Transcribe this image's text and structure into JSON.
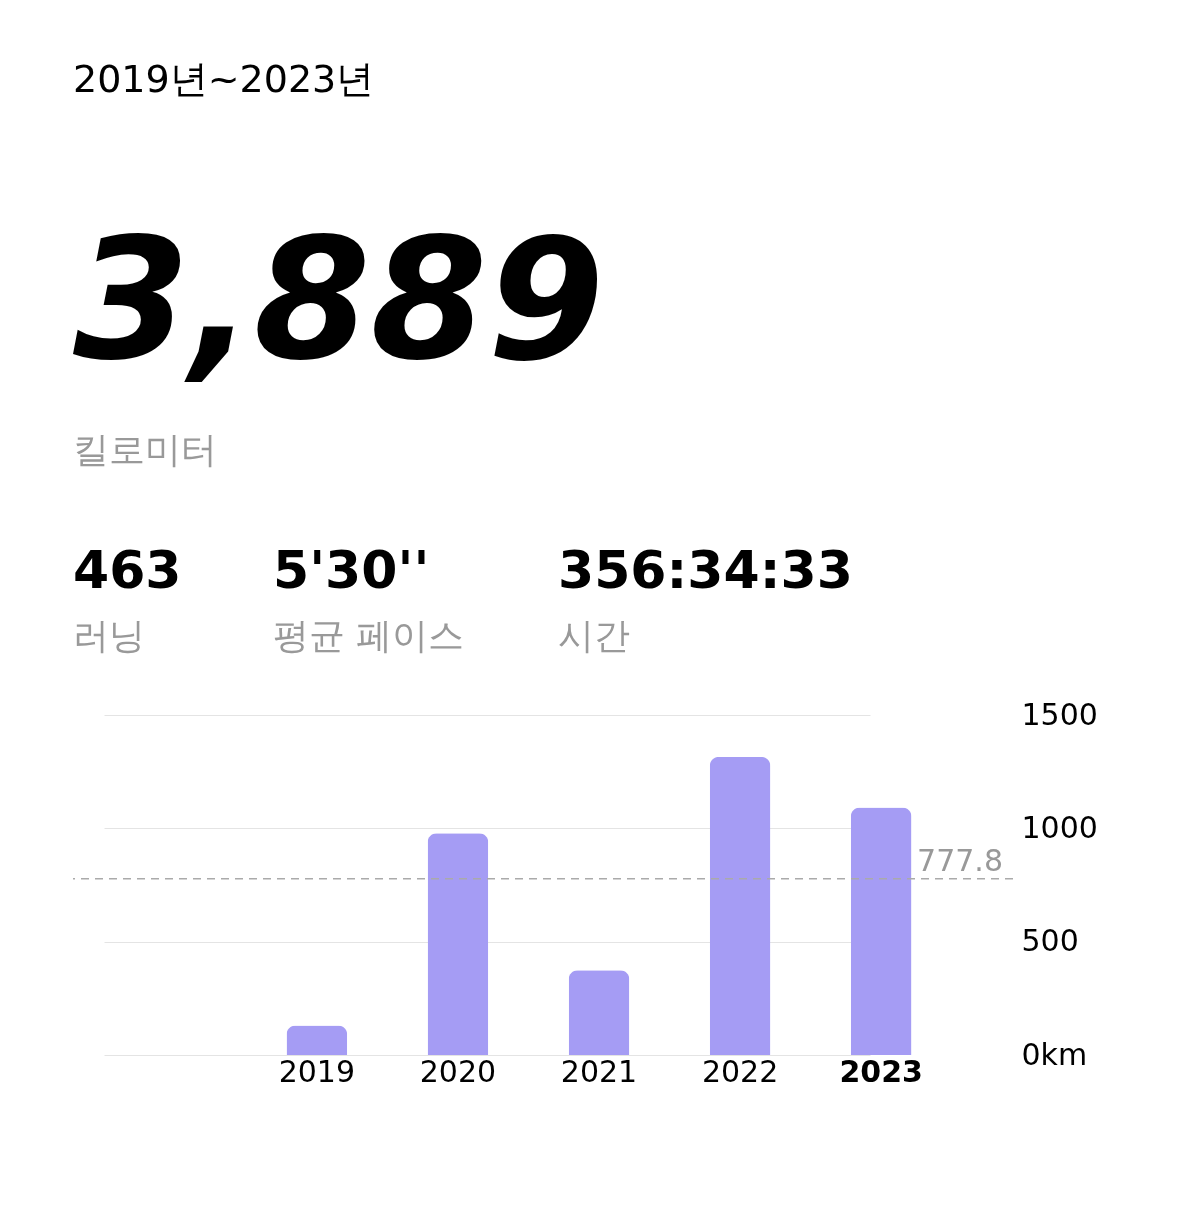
{
  "chart_data": {
    "type": "bar",
    "title": "2019년~2023년",
    "annotations": [
      "3,889",
      "킬로미터",
      "463",
      "러닝",
      "5'30''",
      "평균 페이스",
      "356:34:33",
      "시간"
    ],
    "categories": [
      "2019",
      "2020",
      "2021",
      "2022",
      "2023"
    ],
    "values": [
      130,
      978,
      374,
      1315,
      1092
    ],
    "color": "#a59cf4",
    "ylim": [
      0,
      1500
    ],
    "yticks": [
      {
        "value": 0,
        "label": "0km"
      },
      500,
      1000,
      1500
    ],
    "grid": "y",
    "ref_lines": [
      {
        "axis": "y",
        "value": 777.8,
        "label": "777.8",
        "color": "#aaaaaa",
        "line_style": "dashed"
      }
    ]
  }
}
